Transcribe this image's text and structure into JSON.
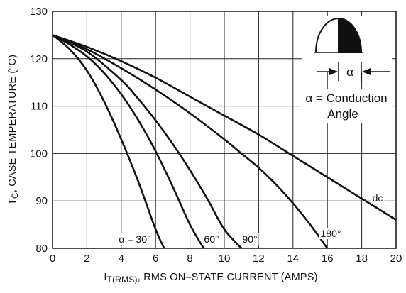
{
  "chart_data": {
    "type": "line",
    "xlabel_prefix": "I",
    "xlabel_sub": "T(RMS)",
    "xlabel_rest": ", RMS ON–STATE CURRENT (AMPS)",
    "ylabel_prefix": "T",
    "ylabel_sub": "C",
    "ylabel_rest": ", CASE TEMPERATURE (°C)",
    "xlim": [
      0,
      20
    ],
    "ylim": [
      80,
      130
    ],
    "xticks": [
      0,
      2,
      4,
      6,
      8,
      10,
      12,
      14,
      16,
      18,
      20
    ],
    "yticks": [
      80,
      90,
      100,
      110,
      120,
      130
    ],
    "grid": true,
    "series": [
      {
        "name": "α = 30°",
        "x": [
          0,
          1,
          2,
          3,
          4,
          5,
          6,
          6.5
        ],
        "y": [
          125,
          122,
          117.5,
          111,
          103,
          94,
          84,
          80
        ]
      },
      {
        "name": "60°",
        "x": [
          0,
          1,
          2,
          3,
          4,
          5,
          6,
          7,
          8,
          8.8
        ],
        "y": [
          125,
          123,
          120.5,
          117,
          112.5,
          107,
          100.5,
          93,
          85,
          80
        ]
      },
      {
        "name": "90°",
        "x": [
          0,
          2,
          4,
          5,
          6,
          7,
          8,
          9,
          10,
          11
        ],
        "y": [
          125,
          121.5,
          115.5,
          111.5,
          107,
          102,
          96.5,
          90.5,
          84,
          80
        ]
      },
      {
        "name": "180°",
        "x": [
          0,
          2,
          4,
          6,
          8,
          10,
          11,
          12,
          13,
          14,
          15,
          16
        ],
        "y": [
          125,
          122,
          118,
          113.5,
          108.5,
          103,
          100,
          97,
          93.5,
          89.5,
          85,
          80
        ]
      },
      {
        "name": "dc",
        "x": [
          0,
          2,
          4,
          6,
          8,
          10,
          12,
          14,
          16,
          18,
          20
        ],
        "y": [
          125,
          122.5,
          119.5,
          116,
          112,
          108,
          104,
          99.5,
          95,
          90.5,
          86
        ]
      }
    ],
    "annotation": {
      "alpha_symbol": "α",
      "line1": "α = Conduction",
      "line2": "Angle"
    }
  }
}
